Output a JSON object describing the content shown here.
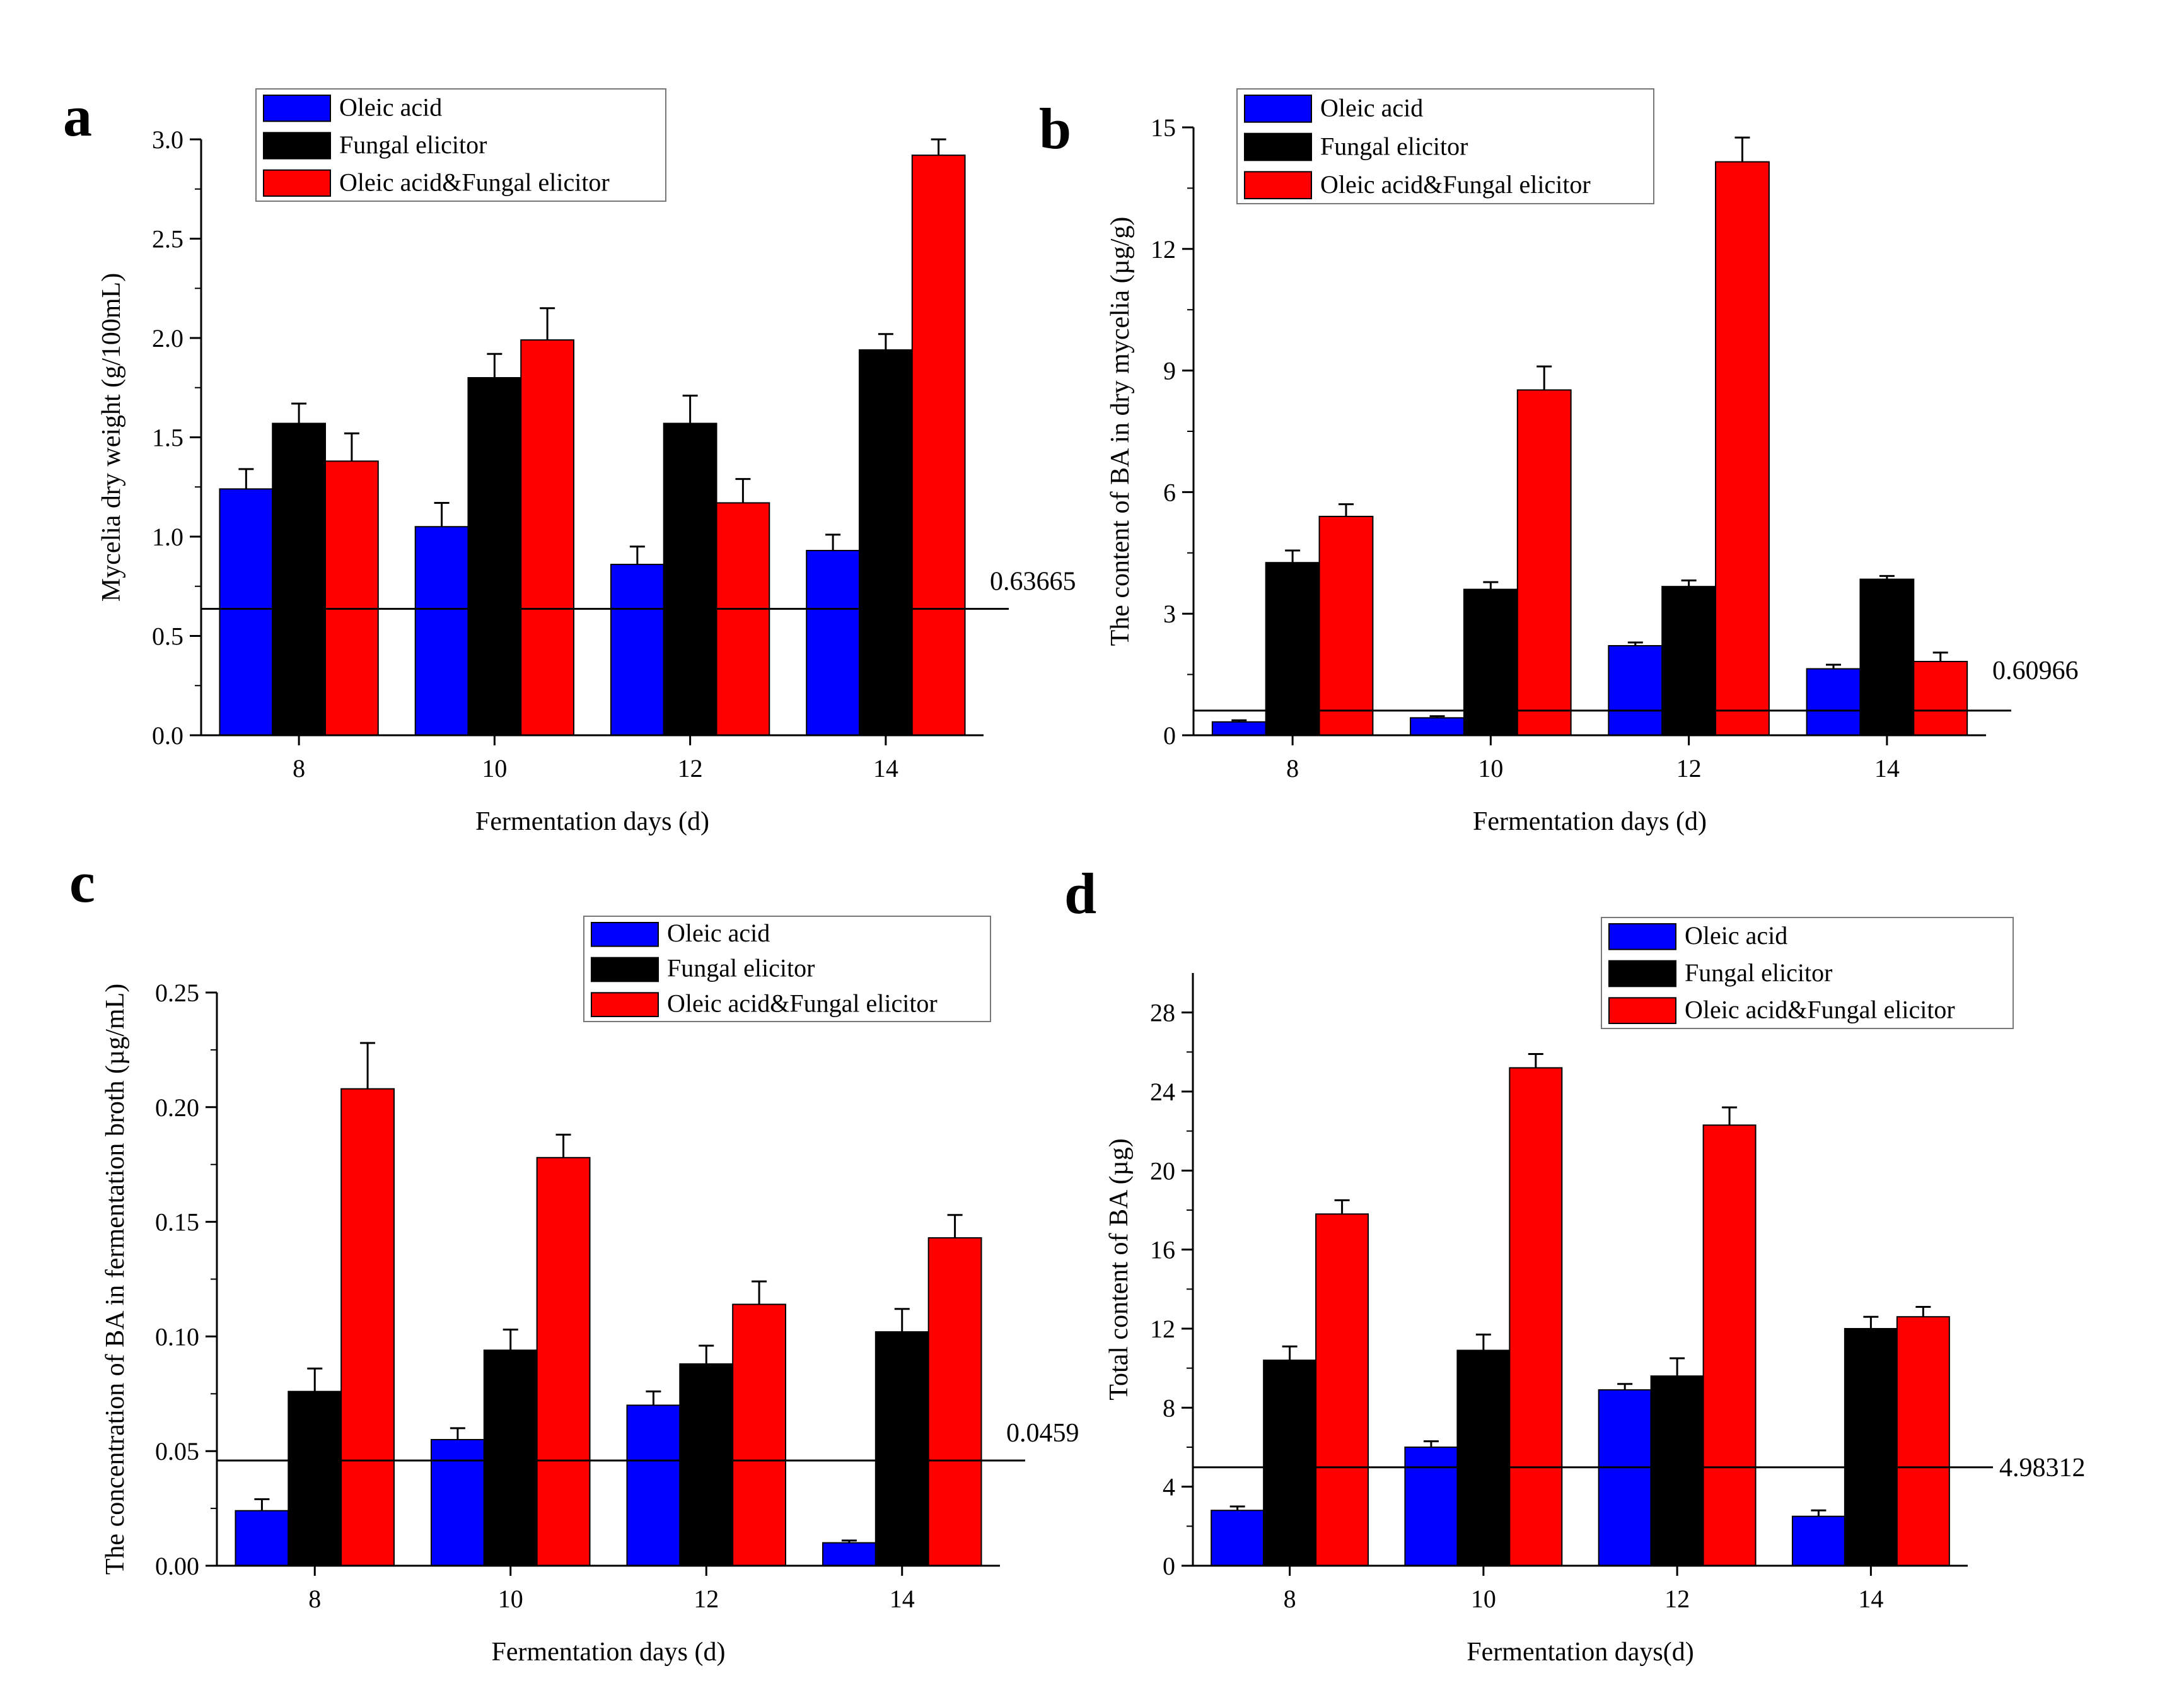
{
  "colors": {
    "series": [
      "#0000ff",
      "#000000",
      "#ff0000"
    ],
    "axis": "#000000",
    "background": "#ffffff"
  },
  "chart_data": [
    {
      "panel": "a",
      "type": "bar",
      "categories": [
        "8",
        "10",
        "12",
        "14"
      ],
      "xlabel": "Fermentation days (d)",
      "ylabel": "Mycelia dry weight (g/100mL)",
      "ylim": [
        0,
        3.0
      ],
      "yticks": [
        0.0,
        0.5,
        1.0,
        1.5,
        2.0,
        2.5,
        3.0
      ],
      "ytick_labels": [
        "0.0",
        "0.5",
        "1.0",
        "1.5",
        "2.0",
        "2.5",
        "3.0"
      ],
      "grid": false,
      "legend_position": "top-left",
      "reference_line": {
        "value": 0.63665,
        "label": "0.63665"
      },
      "series": [
        {
          "name": "Oleic acid",
          "values": [
            1.24,
            1.05,
            0.86,
            0.93
          ],
          "errors": [
            0.1,
            0.12,
            0.09,
            0.08
          ]
        },
        {
          "name": "Fungal elicitor",
          "values": [
            1.57,
            1.8,
            1.57,
            1.94
          ],
          "errors": [
            0.1,
            0.12,
            0.14,
            0.08
          ]
        },
        {
          "name": "Oleic acid&Fungal elicitor",
          "values": [
            1.38,
            1.99,
            1.17,
            2.92
          ],
          "errors": [
            0.14,
            0.16,
            0.12,
            0.08
          ]
        }
      ]
    },
    {
      "panel": "b",
      "type": "bar",
      "categories": [
        "8",
        "10",
        "12",
        "14"
      ],
      "xlabel": "Fermentation days (d)",
      "ylabel": "The content of BA in dry mycelia (µg/g)",
      "ylim": [
        0,
        15
      ],
      "yticks": [
        0,
        3,
        6,
        9,
        12,
        15
      ],
      "ytick_labels": [
        "0",
        "3",
        "6",
        "9",
        "12",
        "15"
      ],
      "grid": false,
      "legend_position": "top-left",
      "reference_line": {
        "value": 0.60966,
        "label": "0.60966"
      },
      "series": [
        {
          "name": "Oleic acid",
          "values": [
            0.33,
            0.43,
            2.21,
            1.64
          ],
          "errors": [
            0.04,
            0.04,
            0.08,
            0.1
          ]
        },
        {
          "name": "Fungal elicitor",
          "values": [
            4.26,
            3.6,
            3.67,
            3.85
          ],
          "errors": [
            0.3,
            0.18,
            0.15,
            0.08
          ]
        },
        {
          "name": "Oleic acid&Fungal elicitor",
          "values": [
            5.4,
            8.52,
            14.15,
            1.82
          ],
          "errors": [
            0.3,
            0.58,
            0.6,
            0.22
          ]
        }
      ]
    },
    {
      "panel": "c",
      "type": "bar",
      "categories": [
        "8",
        "10",
        "12",
        "14"
      ],
      "xlabel": "Fermentation days (d)",
      "ylabel": "The concentration of BA in fermentation broth (µg/mL)",
      "ylim": [
        0,
        0.25
      ],
      "yticks": [
        0.0,
        0.05,
        0.1,
        0.15,
        0.2,
        0.25
      ],
      "ytick_labels": [
        "0.00",
        "0.05",
        "0.10",
        "0.15",
        "0.20",
        "0.25"
      ],
      "grid": false,
      "legend_position": "top-right",
      "reference_line": {
        "value": 0.0459,
        "label": "0.0459"
      },
      "series": [
        {
          "name": "Oleic acid",
          "values": [
            0.024,
            0.055,
            0.07,
            0.01
          ],
          "errors": [
            0.005,
            0.005,
            0.006,
            0.001
          ]
        },
        {
          "name": "Fungal elicitor",
          "values": [
            0.076,
            0.094,
            0.088,
            0.102
          ],
          "errors": [
            0.01,
            0.009,
            0.008,
            0.01
          ]
        },
        {
          "name": "Oleic acid&Fungal elicitor",
          "values": [
            0.208,
            0.178,
            0.114,
            0.143
          ],
          "errors": [
            0.02,
            0.01,
            0.01,
            0.01
          ]
        }
      ]
    },
    {
      "panel": "d",
      "type": "bar",
      "categories": [
        "8",
        "10",
        "12",
        "14"
      ],
      "xlabel": "Fermentation days(d)",
      "ylabel": "Total content of BA (µg)",
      "ylim": [
        0,
        30
      ],
      "yticks": [
        0,
        4,
        8,
        12,
        16,
        20,
        24,
        28
      ],
      "ytick_labels": [
        "0",
        "4",
        "8",
        "12",
        "16",
        "20",
        "24",
        "28"
      ],
      "grid": false,
      "legend_position": "top-right",
      "reference_line": {
        "value": 4.98312,
        "label": "4.98312"
      },
      "series": [
        {
          "name": "Oleic acid",
          "values": [
            2.8,
            6.0,
            8.9,
            2.5
          ],
          "errors": [
            0.2,
            0.3,
            0.3,
            0.3
          ]
        },
        {
          "name": "Fungal elicitor",
          "values": [
            10.4,
            10.9,
            9.6,
            12.0
          ],
          "errors": [
            0.7,
            0.8,
            0.9,
            0.6
          ]
        },
        {
          "name": "Oleic acid&Fungal elicitor",
          "values": [
            17.8,
            25.2,
            22.3,
            12.6
          ],
          "errors": [
            0.7,
            0.7,
            0.9,
            0.5
          ]
        }
      ]
    }
  ]
}
